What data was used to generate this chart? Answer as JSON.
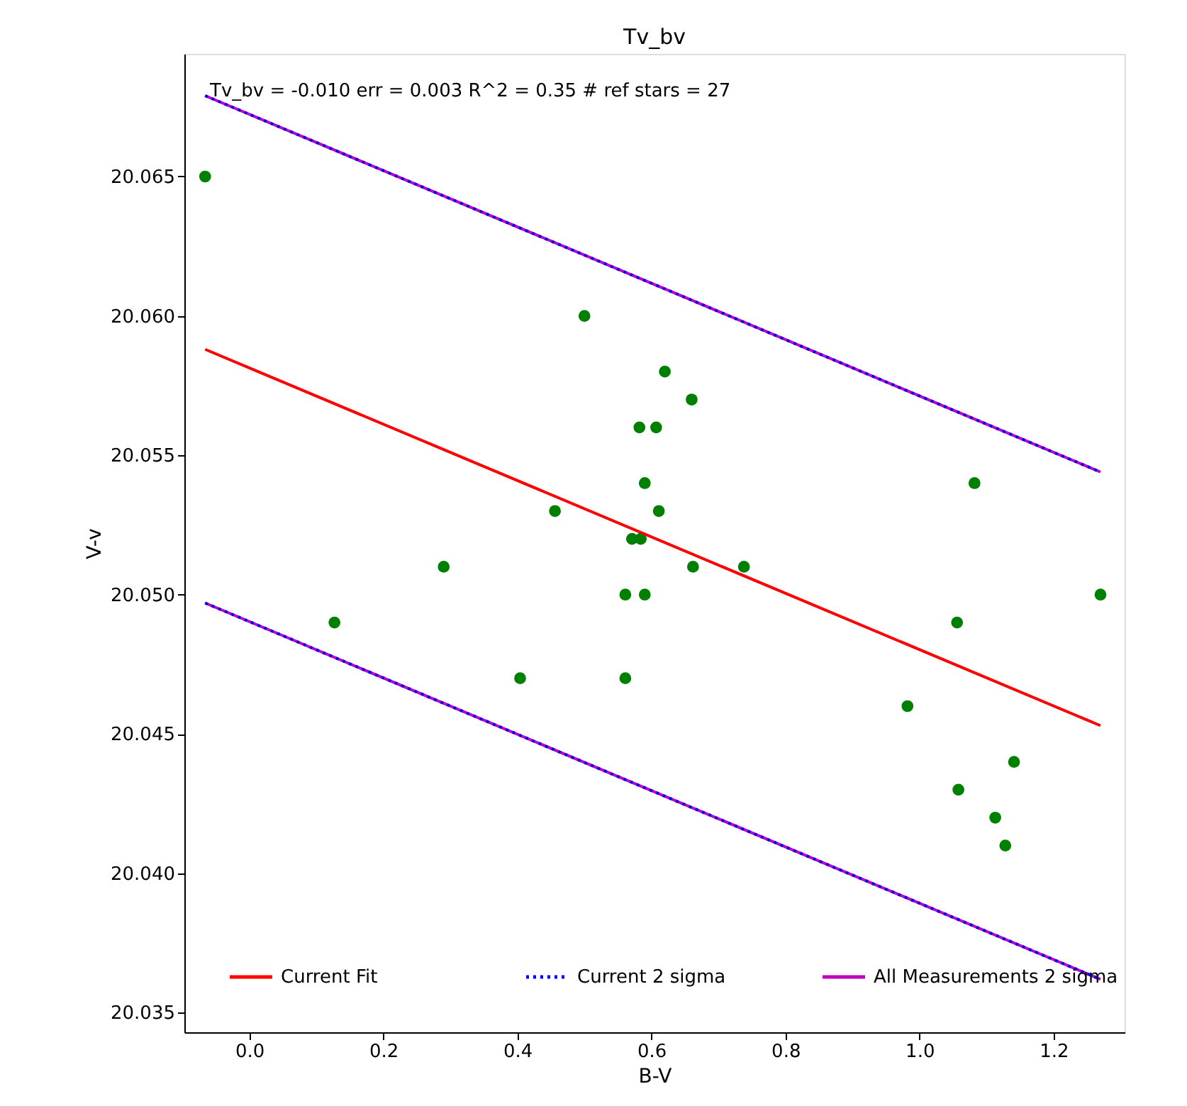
{
  "chart_data": {
    "type": "scatter",
    "title": "Tv_bv",
    "xlabel": "B-V",
    "ylabel": "V-v",
    "annotations": [
      "Tv_bv =  -0.010 err = 0.003  R^2 = 0.35  # ref stars =  27"
    ],
    "xlim": [
      -0.097,
      1.306
    ],
    "ylim": [
      20.0343,
      20.0694
    ],
    "xticks": [
      {
        "value": 0,
        "label": "0.0"
      },
      {
        "value": 0.2,
        "label": "0.2"
      },
      {
        "value": 0.4,
        "label": "0.4"
      },
      {
        "value": 0.6,
        "label": "0.6"
      },
      {
        "value": 0.8,
        "label": "0.8"
      },
      {
        "value": 1,
        "label": "1.0"
      },
      {
        "value": 1.2,
        "label": "1.2"
      }
    ],
    "yticks": [
      20.035,
      {
        "value": 20.04,
        "label": "20.040"
      },
      20.045,
      {
        "value": 20.05,
        "label": "20.050"
      },
      20.055,
      {
        "value": 20.06,
        "label": "20.060"
      },
      20.065
    ],
    "grid": false,
    "legend": "bottom",
    "series": [
      {
        "color": "#008000",
        "marker": "circle",
        "x": [
          -0.066,
          0.5,
          0.456,
          0.29,
          0.127,
          0.404,
          0.561,
          0.561,
          0.59,
          0.582,
          0.607,
          0.62,
          0.59,
          0.571,
          0.584,
          0.611,
          0.66,
          0.662,
          0.738,
          0.982,
          1.056,
          1.058,
          1.082,
          1.113,
          1.128,
          1.141,
          1.27
        ],
        "values": [
          20.065,
          20.06,
          20.053,
          20.051,
          20.049,
          20.047,
          20.047,
          20.05,
          20.05,
          20.056,
          20.056,
          20.058,
          20.054,
          20.052,
          20.052,
          20.053,
          20.057,
          20.051,
          20.051,
          20.046,
          20.049,
          20.043,
          20.054,
          20.042,
          20.041,
          20.044,
          20.05
        ]
      },
      {
        "type": "line",
        "name": "Current Fit",
        "color": "#ff0000",
        "line_style": "solid",
        "x": [
          -0.066,
          1.27
        ],
        "values": [
          20.0588,
          20.0453
        ]
      },
      {
        "type": "line",
        "name": "Current 2 sigma",
        "color": "#0000ff",
        "line_style": "dotted",
        "x": [
          -0.066,
          1.27
        ],
        "values": [
          20.0679,
          20.0544
        ]
      },
      {
        "type": "line",
        "color": "#0000ff",
        "line_style": "dotted",
        "x": [
          -0.066,
          1.27
        ],
        "values": [
          20.0497,
          20.0362
        ]
      },
      {
        "type": "line",
        "name": "All Measurements 2 sigma",
        "color": "#bf00bf",
        "line_style": "solid",
        "x": [
          -0.066,
          1.27
        ],
        "values": [
          20.0679,
          20.0544
        ]
      },
      {
        "type": "line",
        "color": "#bf00bf",
        "line_style": "solid",
        "x": [
          -0.066,
          1.27
        ],
        "values": [
          20.0497,
          20.0362
        ]
      }
    ]
  }
}
